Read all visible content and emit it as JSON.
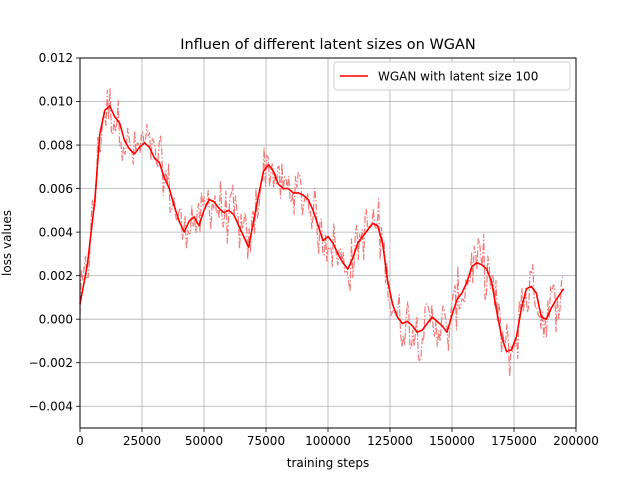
{
  "chart_data": {
    "type": "line",
    "title": "Influen of different latent sizes on WGAN",
    "xlabel": "training steps",
    "ylabel": "loss values",
    "xlim": [
      0,
      200000
    ],
    "ylim": [
      -0.005,
      0.012
    ],
    "xticks": [
      0,
      25000,
      50000,
      75000,
      100000,
      125000,
      150000,
      175000,
      200000
    ],
    "xtick_labels": [
      "0",
      "25000",
      "50000",
      "75000",
      "100000",
      "125000",
      "150000",
      "175000",
      "200000"
    ],
    "yticks": [
      -0.004,
      -0.002,
      0.0,
      0.002,
      0.004,
      0.006,
      0.008,
      0.01,
      0.012
    ],
    "ytick_labels": [
      "−0.004",
      "−0.002",
      "0.000",
      "0.002",
      "0.004",
      "0.006",
      "0.008",
      "0.010",
      "0.012"
    ],
    "grid": true,
    "legend_position": "top-right",
    "series": [
      {
        "name": "WGAN with latent size 100",
        "style": "solid",
        "color": "#ff0000",
        "x": [
          0,
          3000,
          6000,
          8000,
          10000,
          12000,
          14000,
          16000,
          18000,
          20000,
          22000,
          24000,
          26000,
          28000,
          30000,
          32000,
          34000,
          36000,
          38000,
          40000,
          42000,
          44000,
          46000,
          48000,
          50000,
          52000,
          54000,
          56000,
          58000,
          60000,
          62000,
          64000,
          66000,
          68000,
          70000,
          72000,
          74000,
          76000,
          78000,
          80000,
          82000,
          84000,
          86000,
          88000,
          90000,
          92000,
          94000,
          96000,
          98000,
          100000,
          102000,
          104000,
          106000,
          108000,
          110000,
          112000,
          114000,
          116000,
          118000,
          120000,
          122000,
          124000,
          126000,
          128000,
          130000,
          132000,
          134000,
          136000,
          138000,
          140000,
          142000,
          144000,
          146000,
          148000,
          150000,
          152000,
          154000,
          156000,
          158000,
          160000,
          162000,
          164000,
          166000,
          168000,
          170000,
          172000,
          174000,
          176000,
          178000,
          180000,
          182000,
          184000,
          186000,
          188000,
          190000,
          192000,
          195000
        ],
        "y": [
          0.0007,
          0.0025,
          0.0055,
          0.0085,
          0.0096,
          0.0098,
          0.0093,
          0.009,
          0.0082,
          0.0078,
          0.0076,
          0.0079,
          0.0081,
          0.0079,
          0.0074,
          0.0072,
          0.0065,
          0.006,
          0.0052,
          0.0045,
          0.004,
          0.0045,
          0.0047,
          0.0043,
          0.005,
          0.0055,
          0.0054,
          0.0051,
          0.0049,
          0.005,
          0.0048,
          0.0043,
          0.0038,
          0.0033,
          0.0045,
          0.0057,
          0.0068,
          0.0071,
          0.0068,
          0.0062,
          0.006,
          0.006,
          0.0058,
          0.0058,
          0.0057,
          0.0055,
          0.005,
          0.0043,
          0.0036,
          0.0038,
          0.0035,
          0.003,
          0.0026,
          0.0023,
          0.0028,
          0.0035,
          0.0038,
          0.0041,
          0.0044,
          0.0043,
          0.0035,
          0.0018,
          0.0007,
          0.0001,
          -0.0002,
          -0.0001,
          -0.0003,
          -0.0006,
          -0.0005,
          -0.0002,
          0.0001,
          -0.0001,
          -0.0003,
          -0.0006,
          0.0002,
          0.0009,
          0.0012,
          0.0017,
          0.0024,
          0.0026,
          0.0025,
          0.0023,
          0.0017,
          0.0004,
          -0.0008,
          -0.0015,
          -0.0014,
          -0.0008,
          0.0005,
          0.0014,
          0.0015,
          0.0012,
          0.0001,
          0.0,
          0.0005,
          0.0009,
          0.0014
        ]
      }
    ]
  }
}
